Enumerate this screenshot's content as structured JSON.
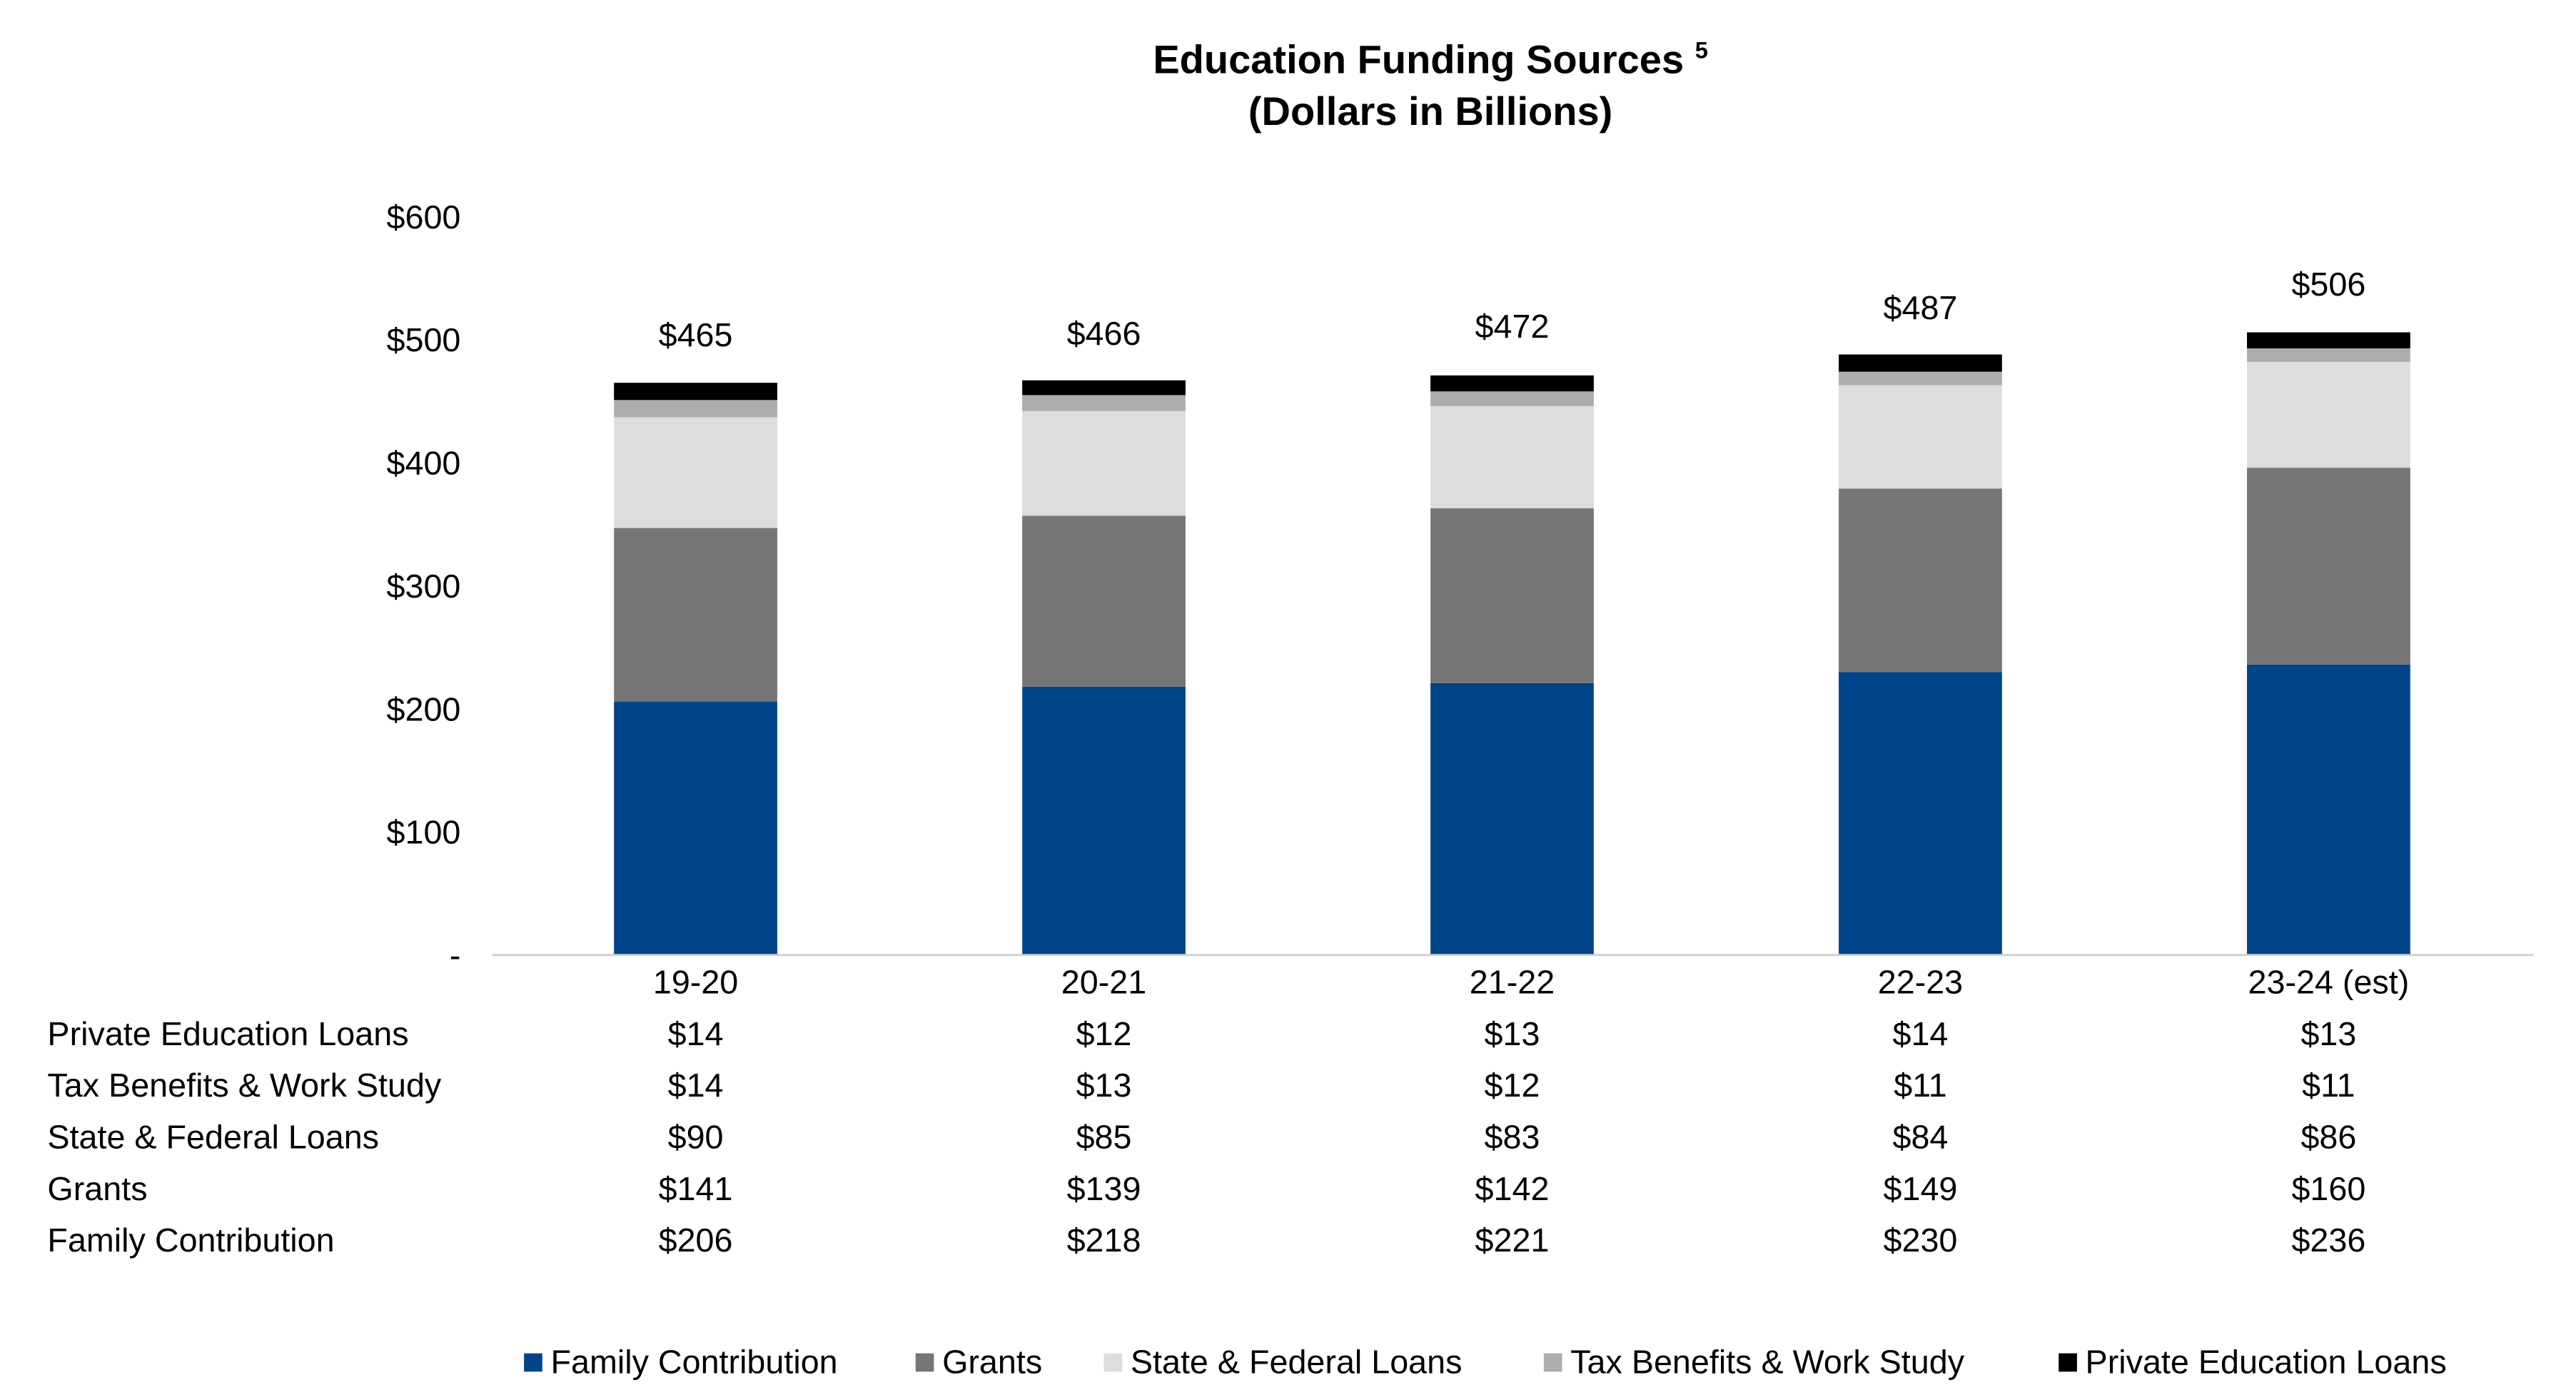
{
  "chart_data": {
    "type": "bar",
    "stacked": true,
    "title": "Education Funding Sources",
    "title_superscript": "5",
    "subtitle": "(Dollars in Billions)",
    "xlabel": "",
    "ylabel": "",
    "ylim": [
      0,
      600
    ],
    "yticks": [
      0,
      100,
      200,
      300,
      400,
      500,
      600
    ],
    "ytick_labels": [
      "-",
      "$100",
      "$200",
      "$300",
      "$400",
      "$500",
      "$600"
    ],
    "grid": false,
    "legend_position": "bottom",
    "categories": [
      "19-20",
      "20-21",
      "21-22",
      "22-23",
      "23-24 (est)"
    ],
    "totals": [
      465,
      466,
      472,
      487,
      506
    ],
    "total_labels": [
      "$465",
      "$466",
      "$472",
      "$487",
      "$506"
    ],
    "series": [
      {
        "name": "Family Contribution",
        "color": "#004589",
        "values": [
          206,
          218,
          221,
          230,
          236
        ]
      },
      {
        "name": "Grants",
        "color": "#767676",
        "values": [
          141,
          139,
          142,
          149,
          160
        ]
      },
      {
        "name": "State & Federal Loans",
        "color": "#dddddd",
        "values": [
          90,
          85,
          83,
          84,
          86
        ]
      },
      {
        "name": "Tax Benefits & Work Study",
        "color": "#adadad",
        "values": [
          14,
          13,
          12,
          11,
          11
        ]
      },
      {
        "name": "Private Education Loans",
        "color": "#000000",
        "values": [
          14,
          12,
          13,
          14,
          13
        ]
      }
    ],
    "data_table": {
      "rows": [
        {
          "label": "Private Education Loans",
          "cells": [
            "$14",
            "$12",
            "$13",
            "$14",
            "$13"
          ]
        },
        {
          "label": "Tax Benefits & Work Study",
          "cells": [
            "$14",
            "$13",
            "$12",
            "$11",
            "$11"
          ]
        },
        {
          "label": "State & Federal Loans",
          "cells": [
            "$90",
            "$85",
            "$83",
            "$84",
            "$86"
          ]
        },
        {
          "label": "Grants",
          "cells": [
            "$141",
            "$139",
            "$142",
            "$149",
            "$160"
          ]
        },
        {
          "label": "Family Contribution",
          "cells": [
            "$206",
            "$218",
            "$221",
            "$230",
            "$236"
          ]
        }
      ]
    }
  }
}
